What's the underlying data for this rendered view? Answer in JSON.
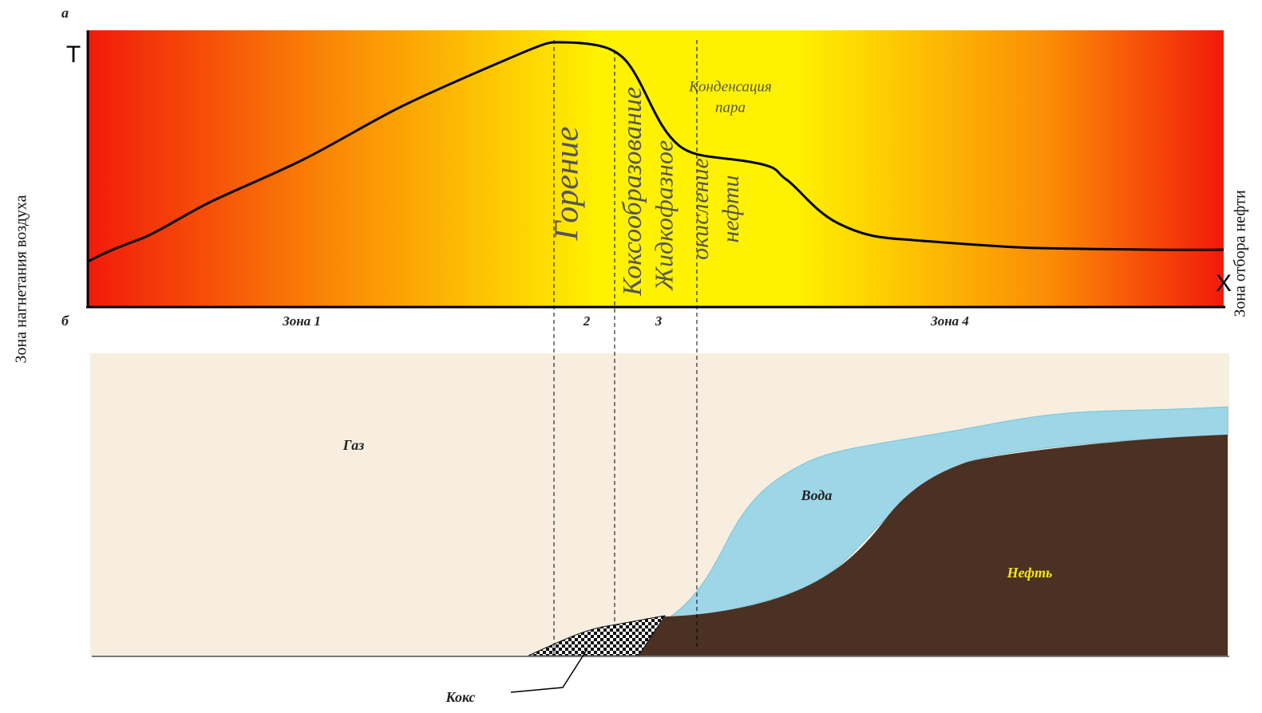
{
  "panel_a": {
    "label": "а",
    "y_axis": "Т",
    "x_axis": "Х",
    "zone_texts": {
      "combustion": "Горение",
      "coking": "Коксообразование",
      "liquid_phase": "Жидкофазное",
      "oxidation": "окисление",
      "oil": "нефти",
      "condensation": "Конденсация",
      "steam": "пара"
    },
    "zones": [
      "Зона 1",
      "2",
      "3",
      "Зона 4"
    ]
  },
  "panel_b": {
    "label": "б",
    "gas": "Газ",
    "water": "Вода",
    "oil": "Нефть",
    "coke": "Кокс"
  },
  "side_labels": {
    "left": "Зона нагнетания воздуха",
    "right": "Зона отбора нефти"
  }
}
